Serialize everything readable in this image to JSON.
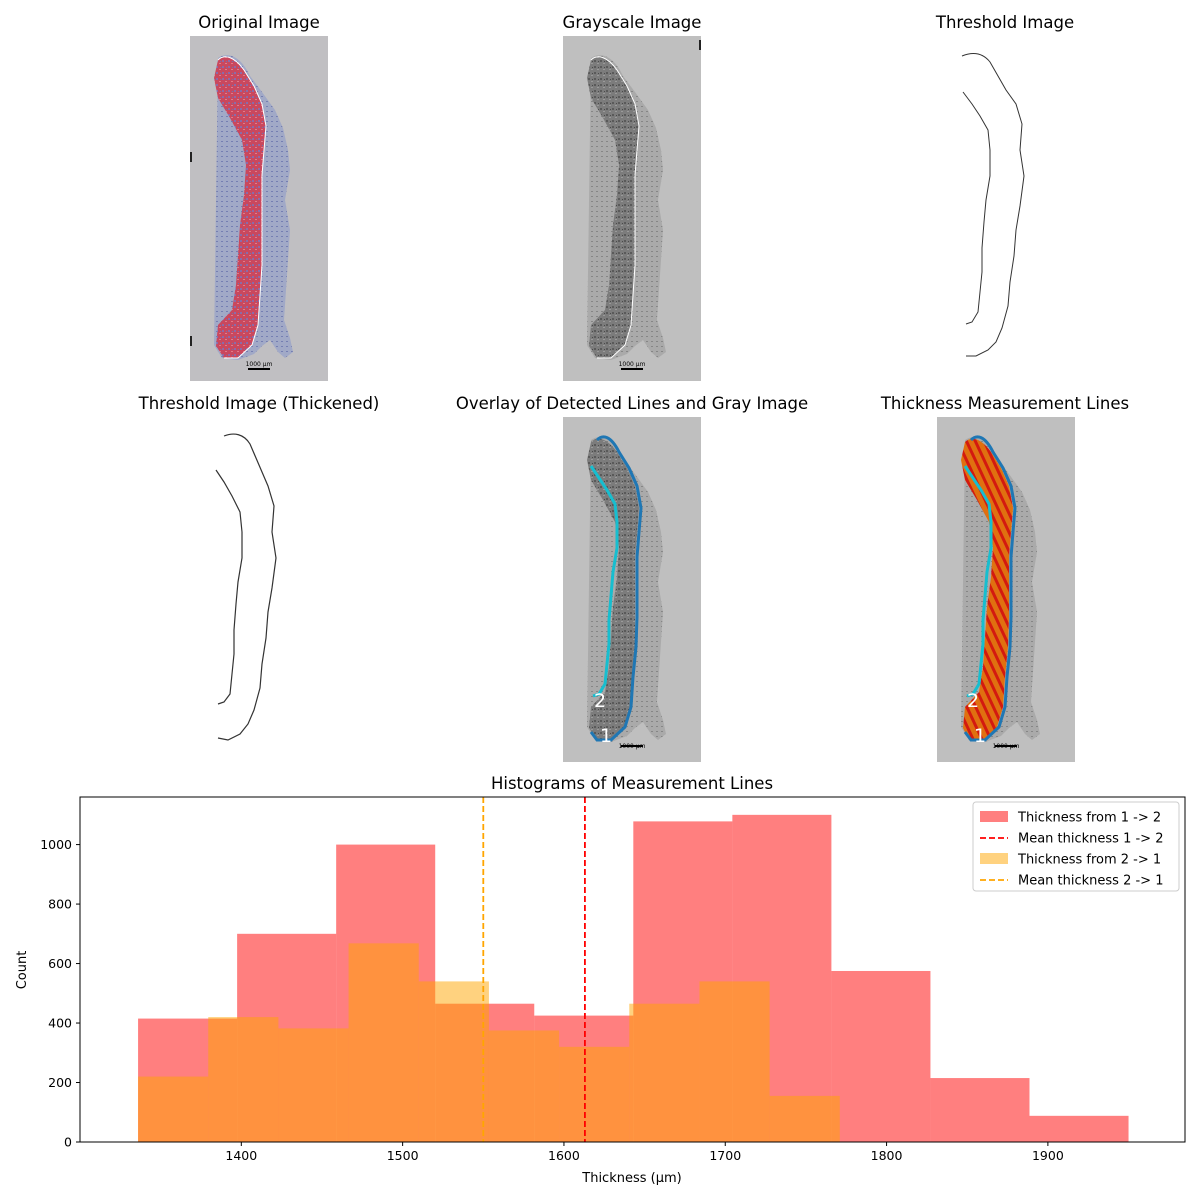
{
  "panels": [
    {
      "title": "Original Image"
    },
    {
      "title": "Grayscale Image"
    },
    {
      "title": "Threshold Image"
    },
    {
      "title": "Threshold Image (Thickened)"
    },
    {
      "title": "Overlay of Detected Lines and Gray Image",
      "labels": [
        "1",
        "2"
      ]
    },
    {
      "title": "Thickness Measurement Lines",
      "labels": [
        "1",
        "2"
      ]
    }
  ],
  "scalebar_text": "1000 µm",
  "colors": {
    "hist_1to2": "#ff0000",
    "hist_2to1": "#ffa500",
    "mean_1to2": "#ff0000",
    "mean_2to1": "#ffa500",
    "line1": "#1f77b4",
    "line2": "#17becf",
    "background": "#c0c0c0"
  },
  "chart_data": {
    "type": "bar",
    "title": "Histograms of Measurement Lines",
    "xlabel": "Thickness (µm)",
    "ylabel": "Count",
    "xlim": [
      1300,
      1985
    ],
    "ylim": [
      0,
      1160
    ],
    "xticks": [
      "1400",
      "1500",
      "1600",
      "1700",
      "1800",
      "1900"
    ],
    "yticks": [
      "0",
      "200",
      "400",
      "600",
      "800",
      "1000"
    ],
    "legend_position": "top-right",
    "series": [
      {
        "name": "Thickness from 1 -> 2",
        "bin_edges": [
          1336,
          1397.4,
          1458.8,
          1520.2,
          1581.6,
          1643,
          1704.4,
          1765.8,
          1827.2,
          1888.6,
          1950
        ],
        "counts": [
          415,
          700,
          1000,
          465,
          425,
          1078,
          1100,
          575,
          215,
          88
        ]
      },
      {
        "name": "Thickness from 2 -> 1",
        "bin_edges": [
          1336,
          1379.5,
          1423,
          1466.5,
          1510,
          1553.5,
          1597,
          1640.5,
          1684,
          1727.5,
          1771
        ],
        "counts": [
          220,
          420,
          382,
          668,
          540,
          375,
          320,
          465,
          540,
          155
        ]
      }
    ],
    "mean_lines": [
      {
        "name": "Mean thickness 1 -> 2",
        "x": 1613
      },
      {
        "name": "Mean thickness 2 -> 1",
        "x": 1550
      }
    ]
  }
}
